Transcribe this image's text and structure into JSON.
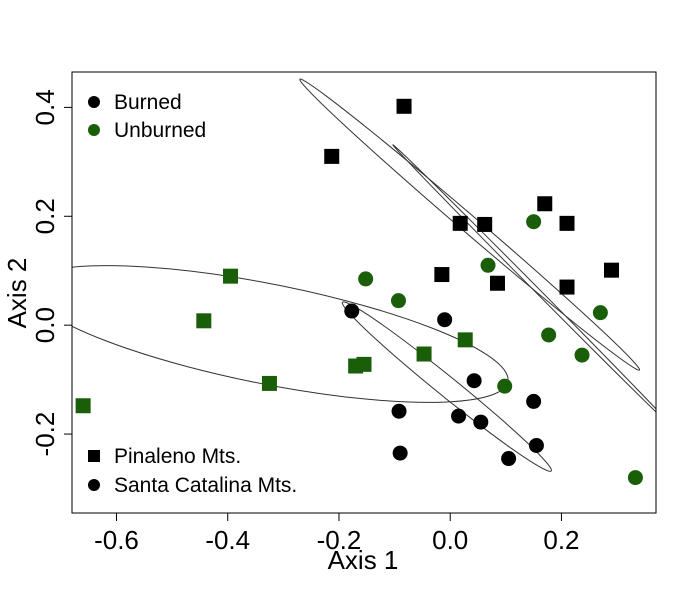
{
  "chart_data": {
    "type": "scatter",
    "xlabel": "Axis 1",
    "ylabel": "Axis 2",
    "xlim": [
      -0.68,
      0.37
    ],
    "ylim": [
      -0.345,
      0.465
    ],
    "xticks": [
      "-0.6",
      "-0.4",
      "-0.2",
      "0.0",
      "0.2"
    ],
    "xtick_values": [
      -0.6,
      -0.4,
      -0.2,
      0.0,
      0.2
    ],
    "yticks": [
      "-0.2",
      "0.0",
      "0.2",
      "0.4"
    ],
    "ytick_values": [
      -0.2,
      0.0,
      0.2,
      0.4
    ],
    "grid": false,
    "colors": {
      "burned": "#000000",
      "unburned": "#1a5e0a"
    },
    "legend_treatment": {
      "placement": "top-left",
      "entries": [
        {
          "label": "Burned",
          "color": "#000000",
          "marker": "circle"
        },
        {
          "label": "Unburned",
          "color": "#1a5e0a",
          "marker": "circle"
        }
      ]
    },
    "legend_site": {
      "placement": "bottom-left",
      "entries": [
        {
          "label": "Pinaleno Mts.",
          "color": "#000000",
          "marker": "square"
        },
        {
          "label": "Santa Catalina Mts.",
          "color": "#000000",
          "marker": "circle"
        }
      ]
    },
    "series": [
      {
        "group": "pinaleno-burned",
        "color": "#000000",
        "marker": "square",
        "points": [
          {
            "x": -0.083,
            "y": 0.402
          },
          {
            "x": -0.213,
            "y": 0.31
          },
          {
            "x": 0.17,
            "y": 0.223
          },
          {
            "x": 0.018,
            "y": 0.187
          },
          {
            "x": 0.062,
            "y": 0.185
          },
          {
            "x": 0.21,
            "y": 0.187
          },
          {
            "x": -0.015,
            "y": 0.093
          },
          {
            "x": 0.085,
            "y": 0.077
          },
          {
            "x": 0.21,
            "y": 0.07
          },
          {
            "x": 0.29,
            "y": 0.101
          }
        ]
      },
      {
        "group": "pinaleno-unburned",
        "color": "#1a5e0a",
        "marker": "square",
        "points": [
          {
            "x": -0.395,
            "y": 0.09
          },
          {
            "x": -0.443,
            "y": 0.008
          },
          {
            "x": -0.66,
            "y": -0.148
          },
          {
            "x": -0.325,
            "y": -0.107
          },
          {
            "x": -0.17,
            "y": -0.075
          },
          {
            "x": -0.155,
            "y": -0.072
          },
          {
            "x": -0.047,
            "y": -0.053
          },
          {
            "x": 0.027,
            "y": -0.027
          }
        ]
      },
      {
        "group": "catalina-burned",
        "color": "#000000",
        "marker": "circle",
        "points": [
          {
            "x": -0.177,
            "y": 0.026
          },
          {
            "x": -0.01,
            "y": 0.01
          },
          {
            "x": 0.043,
            "y": -0.102
          },
          {
            "x": 0.15,
            "y": -0.14
          },
          {
            "x": -0.092,
            "y": -0.158
          },
          {
            "x": 0.015,
            "y": -0.167
          },
          {
            "x": 0.055,
            "y": -0.178
          },
          {
            "x": 0.155,
            "y": -0.221
          },
          {
            "x": -0.09,
            "y": -0.235
          },
          {
            "x": 0.105,
            "y": -0.245
          }
        ]
      },
      {
        "group": "catalina-unburned",
        "color": "#1a5e0a",
        "marker": "circle",
        "points": [
          {
            "x": -0.152,
            "y": 0.085
          },
          {
            "x": -0.093,
            "y": 0.045
          },
          {
            "x": 0.068,
            "y": 0.11
          },
          {
            "x": 0.15,
            "y": 0.19
          },
          {
            "x": 0.27,
            "y": 0.023
          },
          {
            "x": 0.177,
            "y": -0.018
          },
          {
            "x": 0.237,
            "y": -0.055
          },
          {
            "x": 0.098,
            "y": -0.112
          },
          {
            "x": 0.333,
            "y": -0.28
          }
        ]
      }
    ],
    "ellipses": [
      {
        "cx": 0.035,
        "cy": 0.1847,
        "rx": 0.392,
        "ry": 0.1055,
        "angle_deg": -40.6
      },
      {
        "cx": 0.149,
        "cy": 0.0713,
        "rx": 0.344,
        "ry": 0.1133,
        "angle_deg": -46.1
      },
      {
        "cx": -0.328,
        "cy": -0.0162,
        "rx": 0.439,
        "ry": 0.0985,
        "angle_deg": -10.5
      },
      {
        "cx": -0.006,
        "cy": -0.1128,
        "rx": 0.2304,
        "ry": 0.0805,
        "angle_deg": -38.1
      }
    ]
  }
}
